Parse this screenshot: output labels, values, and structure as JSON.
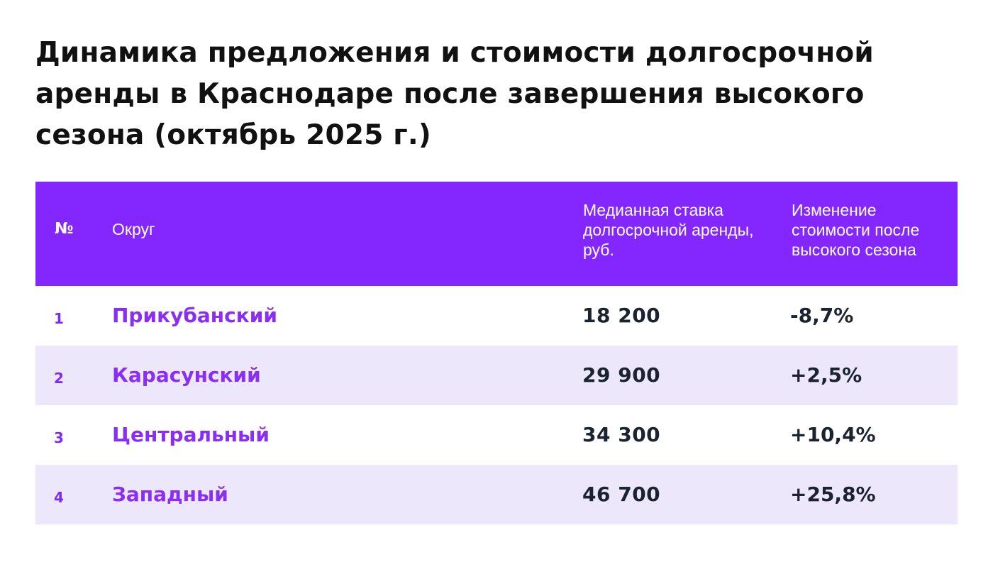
{
  "title": "Динамика предложения и стоимости долгосрочной аренды в Краснодаре после завершения высокого сезона (октябрь 2025 г.)",
  "table": {
    "headers": {
      "num": "№",
      "district": "Округ",
      "rate": "Медианная ставка долгосрочной аренды, руб.",
      "change": "Изменение стоимости после высокого сезона"
    },
    "rows": [
      {
        "num": "1",
        "district": "Прикубанский",
        "rate": "18 200",
        "change": "-8,7%"
      },
      {
        "num": "2",
        "district": "Карасунский",
        "rate": "29 900",
        "change": "+2,5%"
      },
      {
        "num": "3",
        "district": "Центральный",
        "rate": "34 300",
        "change": "+10,4%"
      },
      {
        "num": "4",
        "district": "Западный",
        "rate": "46 700",
        "change": "+25,8%"
      }
    ]
  },
  "colors": {
    "header_bg": "#8427ff",
    "accent_text": "#8a2ef5",
    "row_alt_bg": "#ede7fb",
    "value_text": "#1c2330"
  }
}
